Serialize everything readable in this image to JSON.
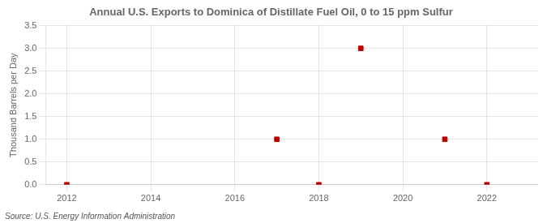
{
  "chart_data": {
    "type": "scatter",
    "title": "Annual U.S. Exports to Dominica of Distillate Fuel Oil, 0 to 15 ppm Sulfur",
    "ylabel": "Thousand Barrels per Day",
    "annotations": [
      "Source: U.S. Energy Information Administration"
    ],
    "x": [
      2012,
      2017,
      2018,
      2019,
      2021,
      2022
    ],
    "values": [
      0.0,
      1.0,
      0.0,
      3.0,
      1.0,
      0.0
    ],
    "color": "#bb0000",
    "marker": "square",
    "xlim": [
      2011.5,
      2023.2
    ],
    "ylim": [
      0,
      3.5
    ],
    "xticks": [
      2012,
      2014,
      2016,
      2018,
      2020,
      2022
    ],
    "yticks": [
      {
        "value": 0,
        "label": "0.0"
      },
      0.5,
      {
        "value": 1,
        "label": "1.0"
      },
      1.5,
      {
        "value": 2,
        "label": "2.0"
      },
      2.5,
      {
        "value": 3,
        "label": "3.0"
      },
      3.5
    ],
    "grid": true
  }
}
